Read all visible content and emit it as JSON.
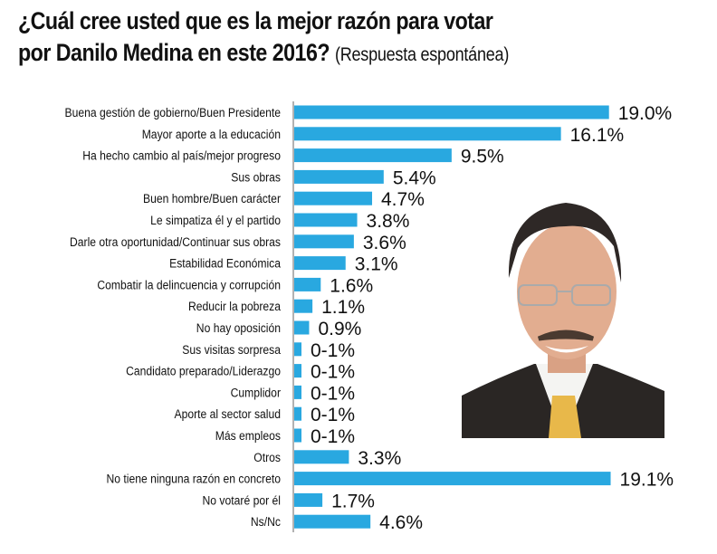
{
  "title": {
    "main_line1": "¿Cuál cree usted que es la mejor razón para votar",
    "main_line2": "por Danilo Medina en este 2016?",
    "subtitle": "(Respuesta espontánea)"
  },
  "colors": {
    "bar": "#29a8e0",
    "text": "#111111",
    "axis": "#999999"
  },
  "chart_data": {
    "type": "bar",
    "orientation": "horizontal",
    "title": "¿Cuál cree usted que es la mejor razón para votar por Danilo Medina en este 2016? (Respuesta espontánea)",
    "xlabel": "",
    "ylabel": "",
    "grid": false,
    "legend": "none",
    "categories": [
      "Buena gestión de gobierno/Buen Presidente",
      "Mayor aporte a la educación",
      "Ha hecho cambio al país/mejor progreso",
      "Sus obras",
      "Buen hombre/Buen carácter",
      "Le simpatiza él y el partido",
      "Darle otra oportunidad/Continuar sus obras",
      "Estabilidad Económica",
      "Combatir la delincuencia y corrupción",
      "Reducir la pobreza",
      "No hay oposición",
      "Sus visitas sorpresa",
      "Candidato preparado/Liderazgo",
      "Cumplidor",
      "Aporte al sector salud",
      "Más empleos",
      "Otros",
      "No tiene ninguna razón en concreto",
      "No votaré por él",
      "Ns/Nc"
    ],
    "values": [
      19.0,
      16.1,
      9.5,
      5.4,
      4.7,
      3.8,
      3.6,
      3.1,
      1.6,
      1.1,
      0.9,
      "0-1",
      "0-1",
      "0-1",
      "0-1",
      "0-1",
      3.3,
      19.1,
      1.7,
      4.6
    ],
    "data_labels": [
      "19.0%",
      "16.1%",
      "9.5%",
      "5.4%",
      "4.7%",
      "3.8%",
      "3.6%",
      "3.1%",
      "1.6%",
      "1.1%",
      "0.9%",
      "0-1%",
      "0-1%",
      "0-1%",
      "0-1%",
      "0-1%",
      "3.3%",
      "19.1%",
      "1.7%",
      "4.6%"
    ],
    "unit": "%"
  },
  "photo": {
    "subject": "portrait-photo"
  }
}
